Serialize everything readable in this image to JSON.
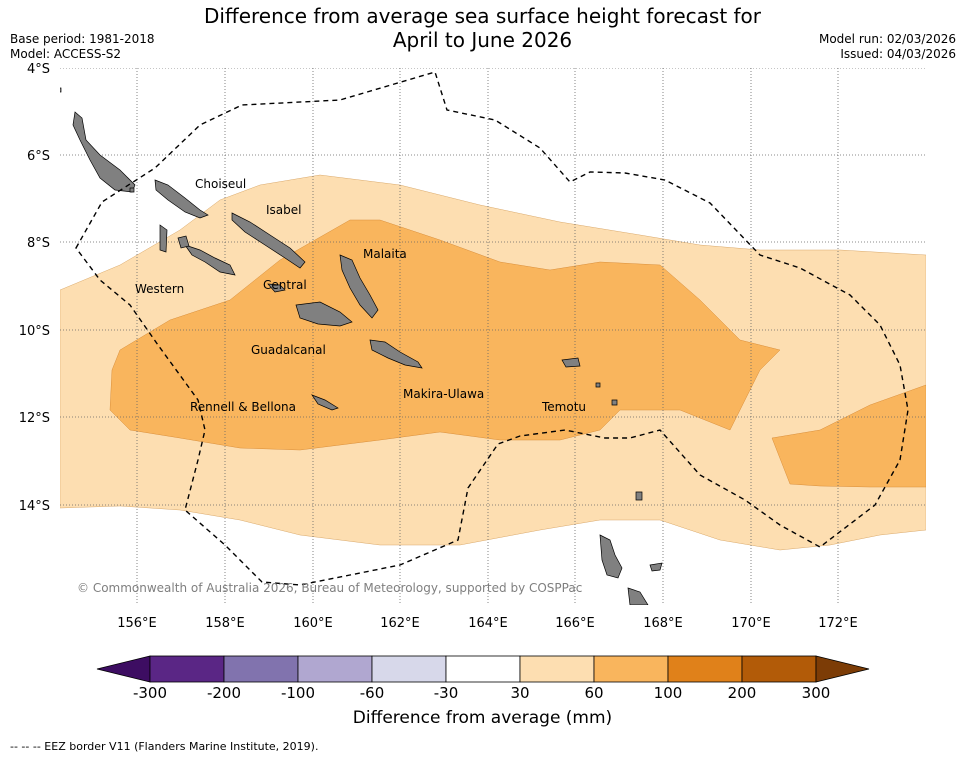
{
  "header": {
    "title_line1": "Difference from average sea surface height forecast for",
    "title_line2": "April to June 2026",
    "base_period": "Base period: 1981-2018",
    "model": "Model: ACCESS-S2",
    "model_run": "Model run: 02/03/2026",
    "issued": "Issued: 04/03/2026"
  },
  "map": {
    "lat_labels": [
      "4°S",
      "6°S",
      "8°S",
      "10°S",
      "12°S",
      "14°S"
    ],
    "lon_labels": [
      "156°E",
      "158°E",
      "160°E",
      "162°E",
      "164°E",
      "166°E",
      "168°E",
      "170°E",
      "172°E"
    ],
    "provinces": [
      "Choiseul",
      "Isabel",
      "Malaita",
      "Western",
      "Central",
      "Guadalcanal",
      "Makira-Ulawa",
      "Rennell & Bellona",
      "Temotu"
    ],
    "credit": "© Commonwealth of Australia 2026, Bureau of Meteorology, supported by COSPPac",
    "colors": {
      "band_30_60": "#fddeb1",
      "band_60_100": "#f9b55d",
      "land": "#808080",
      "grid": "#666666"
    }
  },
  "colorbar": {
    "title": "Difference from average (mm)",
    "tick_labels": [
      "-300",
      "-200",
      "-100",
      "-60",
      "-30",
      "30",
      "60",
      "100",
      "200",
      "300"
    ],
    "colors": [
      "#3d0d62",
      "#5a2685",
      "#8173ae",
      "#b0a7d0",
      "#d7d8ea",
      "#ffffff",
      "#fddeb1",
      "#f9b55d",
      "#e0811a",
      "#b25b08",
      "#7c3c06"
    ]
  },
  "legend": {
    "eez": "--  --  -- EEZ border V11 (Flanders Marine Institute, 2019)."
  }
}
